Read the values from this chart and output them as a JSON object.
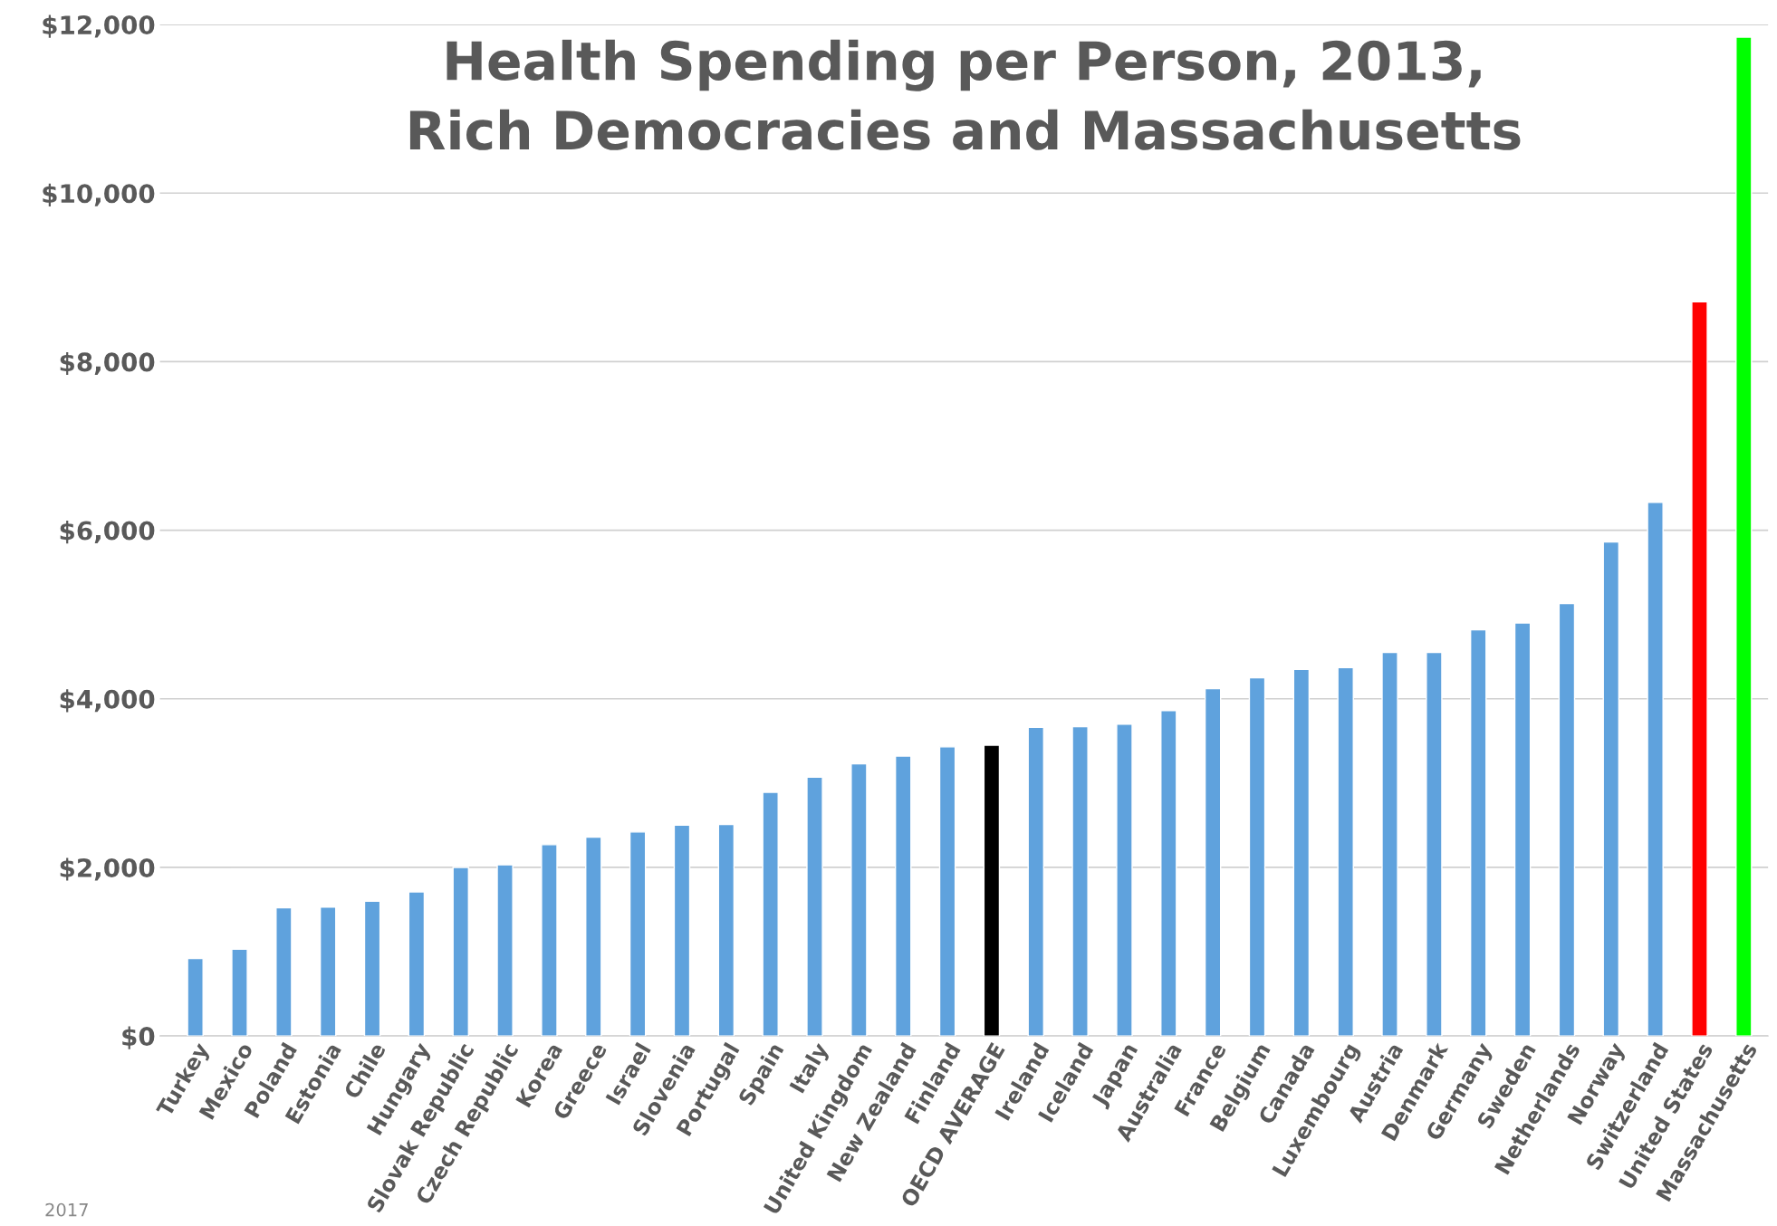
{
  "chart_data": {
    "type": "bar",
    "title": "Health Spending per Person, 2013,\nRich Democracies and Massachusetts",
    "categories": [
      "Turkey",
      "Mexico",
      "Poland",
      "Estonia",
      "Chile",
      "Hungary",
      "Slovak Republic",
      "Czech Republic",
      "Korea",
      "Greece",
      "Israel",
      "Slovenia",
      "Portugal",
      "Spain",
      "Italy",
      "United Kingdom",
      "New Zealand",
      "Finland",
      "OECD AVERAGE",
      "Ireland",
      "Iceland",
      "Japan",
      "Australia",
      "France",
      "Belgium",
      "Canada",
      "Luxembourg",
      "Austria",
      "Denmark",
      "Germany",
      "Sweden",
      "Netherlands",
      "Norway",
      "Switzerland",
      "United States",
      "Massachusetts"
    ],
    "values": [
      920,
      1030,
      1520,
      1530,
      1600,
      1710,
      2000,
      2030,
      2270,
      2360,
      2420,
      2500,
      2510,
      2890,
      3070,
      3230,
      3320,
      3430,
      3450,
      3660,
      3670,
      3700,
      3860,
      4120,
      4250,
      4350,
      4370,
      4550,
      4550,
      4820,
      4900,
      5130,
      5860,
      6330,
      8710,
      11850
    ],
    "colors": [
      "#5fa2dd",
      "#5fa2dd",
      "#5fa2dd",
      "#5fa2dd",
      "#5fa2dd",
      "#5fa2dd",
      "#5fa2dd",
      "#5fa2dd",
      "#5fa2dd",
      "#5fa2dd",
      "#5fa2dd",
      "#5fa2dd",
      "#5fa2dd",
      "#5fa2dd",
      "#5fa2dd",
      "#5fa2dd",
      "#5fa2dd",
      "#5fa2dd",
      "#000000",
      "#5fa2dd",
      "#5fa2dd",
      "#5fa2dd",
      "#5fa2dd",
      "#5fa2dd",
      "#5fa2dd",
      "#5fa2dd",
      "#5fa2dd",
      "#5fa2dd",
      "#5fa2dd",
      "#5fa2dd",
      "#5fa2dd",
      "#5fa2dd",
      "#5fa2dd",
      "#5fa2dd",
      "#ff0000",
      "#00ff00"
    ],
    "ylim": [
      0,
      12000
    ],
    "yticks": [
      {
        "value": 0,
        "label": "$0"
      },
      {
        "value": 2000,
        "label": "$2,000"
      },
      {
        "value": 4000,
        "label": "$4,000"
      },
      {
        "value": 6000,
        "label": "$6,000"
      },
      {
        "value": 8000,
        "label": "$8,000"
      },
      {
        "value": 10000,
        "label": "$10,000"
      },
      {
        "value": 12000,
        "label": "$12,000"
      }
    ],
    "grid": "y",
    "annotations": [
      "2017"
    ]
  }
}
